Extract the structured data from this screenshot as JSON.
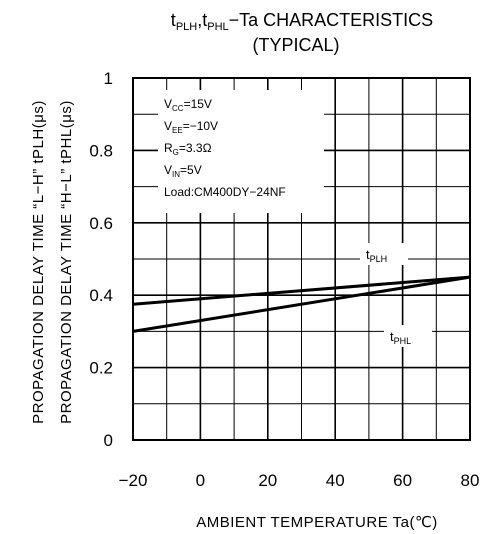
{
  "chart_data": {
    "type": "line",
    "title": {
      "line1": {
        "t1": "t",
        "s1": "PLH",
        "t2": ",t",
        "s2": "PHL",
        "t3": "−Ta  CHARACTERISTICS"
      },
      "line2": "(TYPICAL)"
    },
    "xlabel": "AMBIENT  TEMPERATURE  Ta(℃)",
    "ylabel": [
      "PROPAGATION  DELAY  TIME “L−H”  tPLH(μs)",
      "PROPAGATION  DELAY  TIME “H−L”  tPHL(μs)"
    ],
    "x_ticks": [
      "−20",
      "0",
      "20",
      "40",
      "60",
      "80"
    ],
    "y_ticks": [
      "0",
      "0.2",
      "0.4",
      "0.6",
      "0.8",
      "1"
    ],
    "xlim": [
      -20,
      80
    ],
    "ylim": [
      0,
      1
    ],
    "grid": true,
    "minor_divisions_x": 2,
    "minor_divisions_y": 2,
    "conditions": [
      {
        "m": "V",
        "s": "CC",
        "r": "=15V"
      },
      {
        "m": "V",
        "s": "EE",
        "r": "=−10V"
      },
      {
        "m": "R",
        "s": "G",
        "r": "=3.3Ω"
      },
      {
        "m": "V",
        "s": "IN",
        "r": "=5V"
      },
      {
        "m": "Load:CM400DY−24NF",
        "s": "",
        "r": ""
      }
    ],
    "series": [
      {
        "name": "PLH",
        "prefix": "t",
        "x": [
          -20,
          80
        ],
        "y": [
          0.375,
          0.45
        ]
      },
      {
        "name": "PHL",
        "prefix": "t",
        "x": [
          -20,
          80
        ],
        "y": [
          0.3,
          0.45
        ]
      }
    ],
    "line_color": "#000000"
  }
}
